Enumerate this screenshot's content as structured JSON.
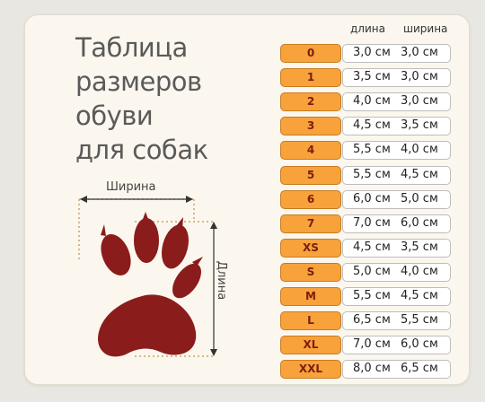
{
  "title_lines": [
    "Таблица",
    "размеров",
    "обуви",
    "для собак"
  ],
  "labels": {
    "width": "Ширина",
    "length": "Длина"
  },
  "columns": {
    "length": "длина",
    "width": "ширина"
  },
  "rows": [
    {
      "size": "0",
      "length": "3,0 см",
      "width": "3,0 см"
    },
    {
      "size": "1",
      "length": "3,5 см",
      "width": "3,0 см"
    },
    {
      "size": "2",
      "length": "4,0 см",
      "width": "3,0 см"
    },
    {
      "size": "3",
      "length": "4,5 см",
      "width": "3,5 см"
    },
    {
      "size": "4",
      "length": "5,5 см",
      "width": "4,0 см"
    },
    {
      "size": "5",
      "length": "5,5 см",
      "width": "4,5 см"
    },
    {
      "size": "6",
      "length": "6,0 см",
      "width": "5,0 см"
    },
    {
      "size": "7",
      "length": "7,0 см",
      "width": "6,0 см"
    },
    {
      "size": "XS",
      "length": "4,5 см",
      "width": "3,5 см"
    },
    {
      "size": "S",
      "length": "5,0 см",
      "width": "4,0 см"
    },
    {
      "size": "M",
      "length": "5,5 см",
      "width": "4,5 см"
    },
    {
      "size": "L",
      "length": "6,5 см",
      "width": "5,5 см"
    },
    {
      "size": "XL",
      "length": "7,0 см",
      "width": "6,0 см"
    },
    {
      "size": "XXL",
      "length": "8,0 см",
      "width": "6,5 см"
    }
  ],
  "colors": {
    "size_fill": "#f7a23b",
    "paw": "#8b1c1c",
    "card": "#fbf7ee"
  }
}
